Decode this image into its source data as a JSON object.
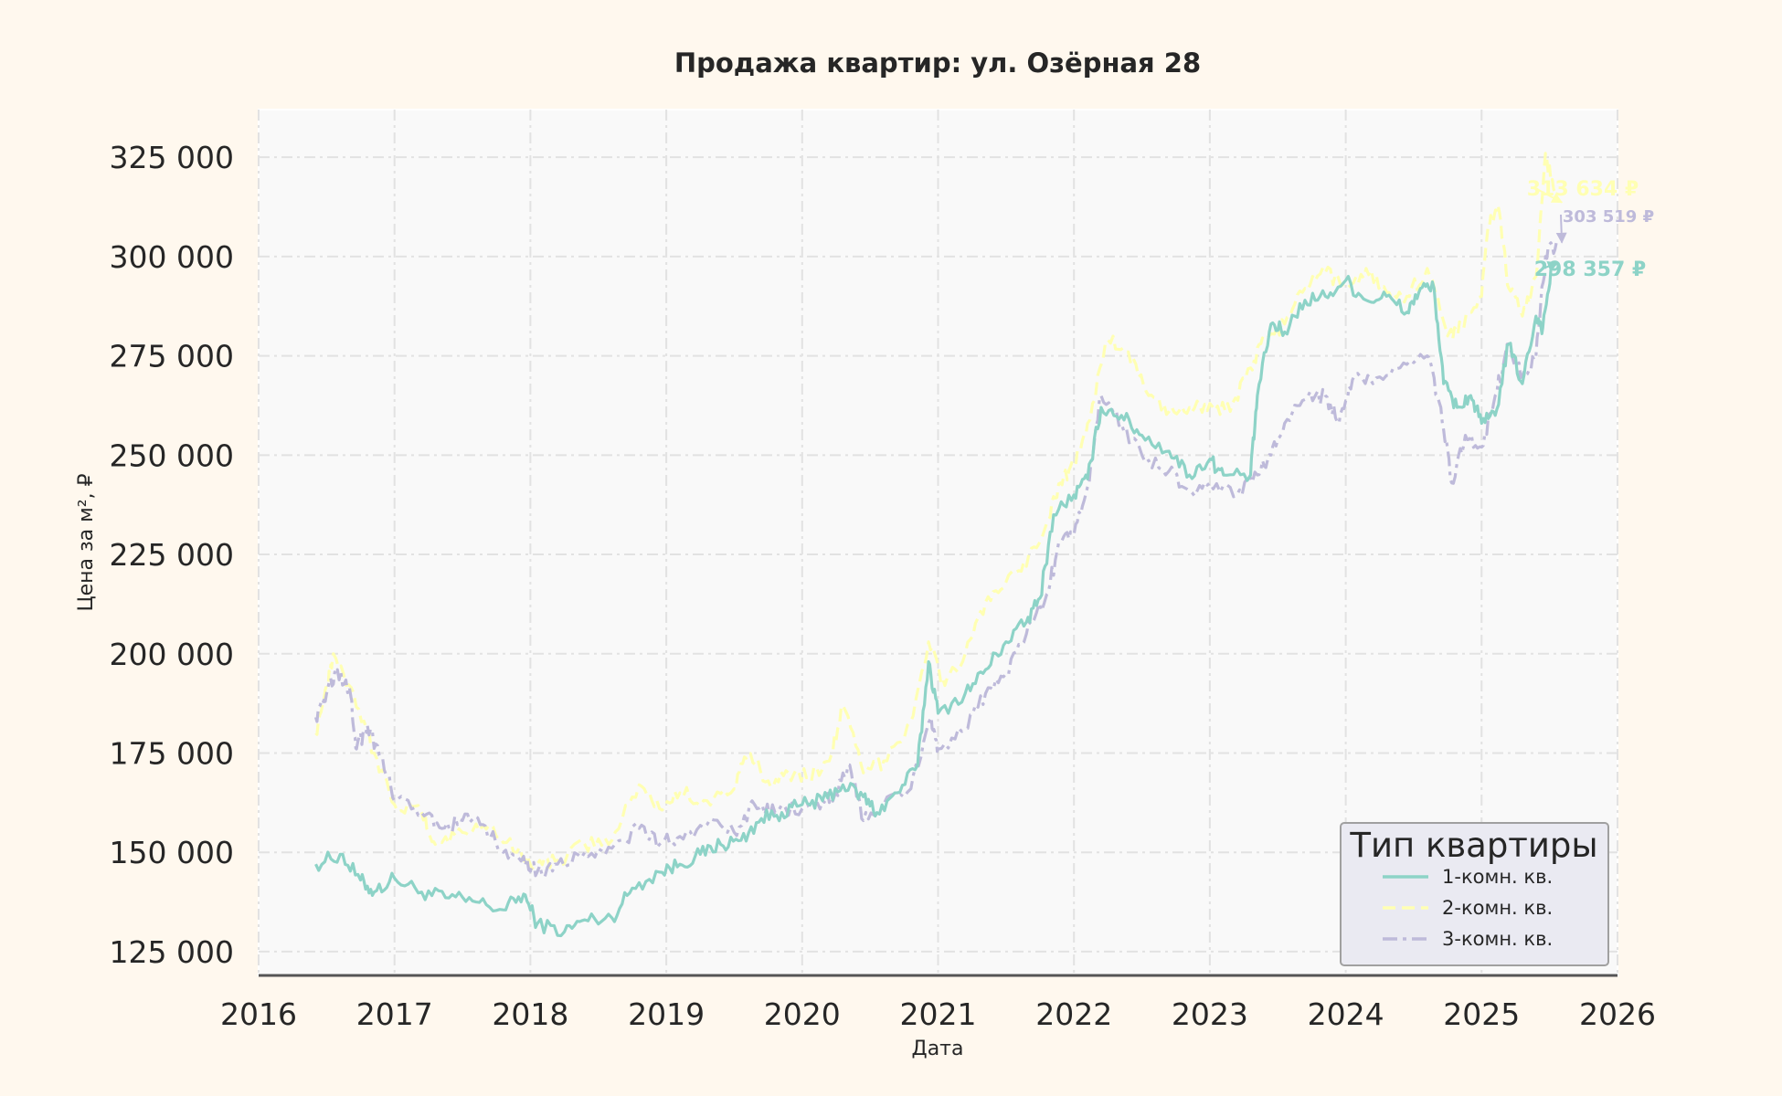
{
  "chart_data": {
    "type": "line",
    "title": "Продажа квартир: ул. Озёрная 28",
    "xlabel": "Дата",
    "ylabel": "Цена за м², ₽",
    "xlim": [
      2016,
      2026
    ],
    "ylim": [
      119000,
      337000
    ],
    "x_ticks": [
      "2016",
      "2017",
      "2018",
      "2019",
      "2020",
      "2021",
      "2022",
      "2023",
      "2024",
      "2025",
      "2026"
    ],
    "y_ticks": [
      {
        "value": 125000,
        "label": "125 000"
      },
      {
        "value": 150000,
        "label": "150 000"
      },
      {
        "value": 175000,
        "label": "175 000"
      },
      {
        "value": 200000,
        "label": "200 000"
      },
      {
        "value": 225000,
        "label": "225 000"
      },
      {
        "value": 250000,
        "label": "250 000"
      },
      {
        "value": 275000,
        "label": "275 000"
      },
      {
        "value": 300000,
        "label": "300 000"
      },
      {
        "value": 325000,
        "label": "325 000"
      }
    ],
    "grid": true,
    "legend": {
      "title": "Тип квартиры",
      "position": "lower-right"
    },
    "series": [
      {
        "name": "1-комн. кв.",
        "color": "#8dd3c7",
        "dash": "solid",
        "end_label": "298 357 ₽",
        "points": [
          [
            2016.42,
            147000
          ],
          [
            2016.6,
            149500
          ],
          [
            2016.75,
            143000
          ],
          [
            2016.85,
            140000
          ],
          [
            2017.0,
            143500
          ],
          [
            2017.2,
            140000
          ],
          [
            2017.4,
            138500
          ],
          [
            2017.6,
            137500
          ],
          [
            2017.8,
            135500
          ],
          [
            2017.95,
            139500
          ],
          [
            2018.05,
            132000
          ],
          [
            2018.25,
            130000
          ],
          [
            2018.4,
            133000
          ],
          [
            2018.6,
            133500
          ],
          [
            2018.75,
            141000
          ],
          [
            2018.95,
            145000
          ],
          [
            2019.1,
            147000
          ],
          [
            2019.25,
            149500
          ],
          [
            2019.4,
            152000
          ],
          [
            2019.55,
            153000
          ],
          [
            2019.7,
            158500
          ],
          [
            2019.85,
            160000
          ],
          [
            2020.0,
            162000
          ],
          [
            2020.15,
            163000
          ],
          [
            2020.3,
            167000
          ],
          [
            2020.45,
            164000
          ],
          [
            2020.55,
            160000
          ],
          [
            2020.7,
            165000
          ],
          [
            2020.85,
            172000
          ],
          [
            2020.93,
            198000
          ],
          [
            2021.0,
            185000
          ],
          [
            2021.2,
            190000
          ],
          [
            2021.35,
            196000
          ],
          [
            2021.5,
            203000
          ],
          [
            2021.65,
            208000
          ],
          [
            2021.75,
            214000
          ],
          [
            2021.85,
            235000
          ],
          [
            2022.0,
            240000
          ],
          [
            2022.1,
            244000
          ],
          [
            2022.2,
            262000
          ],
          [
            2022.35,
            260000
          ],
          [
            2022.5,
            255000
          ],
          [
            2022.7,
            251000
          ],
          [
            2022.85,
            245000
          ],
          [
            2023.0,
            249000
          ],
          [
            2023.1,
            245000
          ],
          [
            2023.3,
            245000
          ],
          [
            2023.35,
            265000
          ],
          [
            2023.45,
            283000
          ],
          [
            2023.55,
            281000
          ],
          [
            2023.7,
            289000
          ],
          [
            2023.85,
            290000
          ],
          [
            2024.0,
            294000
          ],
          [
            2024.15,
            289000
          ],
          [
            2024.3,
            290000
          ],
          [
            2024.45,
            286000
          ],
          [
            2024.55,
            292000
          ],
          [
            2024.65,
            292000
          ],
          [
            2024.72,
            268000
          ],
          [
            2024.82,
            262000
          ],
          [
            2024.92,
            265000
          ],
          [
            2025.0,
            258000
          ],
          [
            2025.1,
            260000
          ],
          [
            2025.2,
            278000
          ],
          [
            2025.3,
            268000
          ],
          [
            2025.4,
            285000
          ],
          [
            2025.45,
            282000
          ],
          [
            2025.52,
            298357
          ]
        ]
      },
      {
        "name": "2-комн. кв.",
        "color": "#ffffb3",
        "dash": "dashed",
        "end_label": "313 634 ₽",
        "points": [
          [
            2016.42,
            180000
          ],
          [
            2016.5,
            192000
          ],
          [
            2016.55,
            200000
          ],
          [
            2016.7,
            190000
          ],
          [
            2016.85,
            175000
          ],
          [
            2017.0,
            162000
          ],
          [
            2017.2,
            160000
          ],
          [
            2017.3,
            152000
          ],
          [
            2017.5,
            155000
          ],
          [
            2017.7,
            157000
          ],
          [
            2017.9,
            150000
          ],
          [
            2018.05,
            147000
          ],
          [
            2018.2,
            148000
          ],
          [
            2018.4,
            152000
          ],
          [
            2018.6,
            153000
          ],
          [
            2018.8,
            167000
          ],
          [
            2018.95,
            161000
          ],
          [
            2019.1,
            165000
          ],
          [
            2019.3,
            163000
          ],
          [
            2019.5,
            166000
          ],
          [
            2019.6,
            175000
          ],
          [
            2019.75,
            168000
          ],
          [
            2019.9,
            170000
          ],
          [
            2020.05,
            169000
          ],
          [
            2020.2,
            173000
          ],
          [
            2020.3,
            187000
          ],
          [
            2020.45,
            170000
          ],
          [
            2020.6,
            173000
          ],
          [
            2020.8,
            183000
          ],
          [
            2020.93,
            203000
          ],
          [
            2021.05,
            192000
          ],
          [
            2021.2,
            200000
          ],
          [
            2021.35,
            213000
          ],
          [
            2021.5,
            218000
          ],
          [
            2021.65,
            222000
          ],
          [
            2021.8,
            233000
          ],
          [
            2021.9,
            243000
          ],
          [
            2022.0,
            248000
          ],
          [
            2022.1,
            258000
          ],
          [
            2022.25,
            279000
          ],
          [
            2022.4,
            276000
          ],
          [
            2022.55,
            265000
          ],
          [
            2022.7,
            261000
          ],
          [
            2022.85,
            262000
          ],
          [
            2023.0,
            263000
          ],
          [
            2023.15,
            261000
          ],
          [
            2023.3,
            272000
          ],
          [
            2023.4,
            279000
          ],
          [
            2023.55,
            283000
          ],
          [
            2023.7,
            292000
          ],
          [
            2023.85,
            296000
          ],
          [
            2024.0,
            292000
          ],
          [
            2024.15,
            297000
          ],
          [
            2024.3,
            291000
          ],
          [
            2024.45,
            290000
          ],
          [
            2024.6,
            297000
          ],
          [
            2024.75,
            280000
          ],
          [
            2024.85,
            283000
          ],
          [
            2025.0,
            290000
          ],
          [
            2025.05,
            308000
          ],
          [
            2025.12,
            313000
          ],
          [
            2025.2,
            292000
          ],
          [
            2025.3,
            285000
          ],
          [
            2025.4,
            295000
          ],
          [
            2025.47,
            326000
          ],
          [
            2025.55,
            313634
          ]
        ]
      },
      {
        "name": "3-комн. кв.",
        "color": "#bebada",
        "dash": "dashdot",
        "end_label": "303 519 ₽",
        "points": [
          [
            2016.42,
            184000
          ],
          [
            2016.5,
            190000
          ],
          [
            2016.58,
            196000
          ],
          [
            2016.68,
            189000
          ],
          [
            2016.72,
            176000
          ],
          [
            2016.8,
            182000
          ],
          [
            2016.9,
            174000
          ],
          [
            2017.0,
            163000
          ],
          [
            2017.2,
            160000
          ],
          [
            2017.35,
            156000
          ],
          [
            2017.5,
            158000
          ],
          [
            2017.65,
            157000
          ],
          [
            2017.8,
            150000
          ],
          [
            2017.95,
            149000
          ],
          [
            2018.05,
            145000
          ],
          [
            2018.2,
            147000
          ],
          [
            2018.4,
            150000
          ],
          [
            2018.6,
            151000
          ],
          [
            2018.8,
            156000
          ],
          [
            2018.95,
            152000
          ],
          [
            2019.1,
            154000
          ],
          [
            2019.3,
            157000
          ],
          [
            2019.5,
            155000
          ],
          [
            2019.65,
            162000
          ],
          [
            2019.8,
            160000
          ],
          [
            2020.0,
            161000
          ],
          [
            2020.15,
            163000
          ],
          [
            2020.25,
            165000
          ],
          [
            2020.35,
            172000
          ],
          [
            2020.45,
            158000
          ],
          [
            2020.6,
            162000
          ],
          [
            2020.8,
            166000
          ],
          [
            2020.95,
            184000
          ],
          [
            2021.0,
            176000
          ],
          [
            2021.2,
            181000
          ],
          [
            2021.35,
            190000
          ],
          [
            2021.5,
            195000
          ],
          [
            2021.65,
            205000
          ],
          [
            2021.8,
            215000
          ],
          [
            2021.9,
            228000
          ],
          [
            2022.0,
            230000
          ],
          [
            2022.1,
            242000
          ],
          [
            2022.2,
            265000
          ],
          [
            2022.35,
            258000
          ],
          [
            2022.5,
            250000
          ],
          [
            2022.7,
            246000
          ],
          [
            2022.85,
            241000
          ],
          [
            2023.0,
            243000
          ],
          [
            2023.2,
            240000
          ],
          [
            2023.35,
            245000
          ],
          [
            2023.45,
            250000
          ],
          [
            2023.55,
            258000
          ],
          [
            2023.7,
            264000
          ],
          [
            2023.85,
            265000
          ],
          [
            2023.95,
            258000
          ],
          [
            2024.05,
            269000
          ],
          [
            2024.2,
            268000
          ],
          [
            2024.4,
            272000
          ],
          [
            2024.6,
            275000
          ],
          [
            2024.7,
            262000
          ],
          [
            2024.78,
            243000
          ],
          [
            2024.88,
            255000
          ],
          [
            2025.0,
            252000
          ],
          [
            2025.1,
            265000
          ],
          [
            2025.2,
            278000
          ],
          [
            2025.3,
            270000
          ],
          [
            2025.4,
            275000
          ],
          [
            2025.47,
            300000
          ],
          [
            2025.55,
            303519
          ]
        ]
      }
    ]
  }
}
